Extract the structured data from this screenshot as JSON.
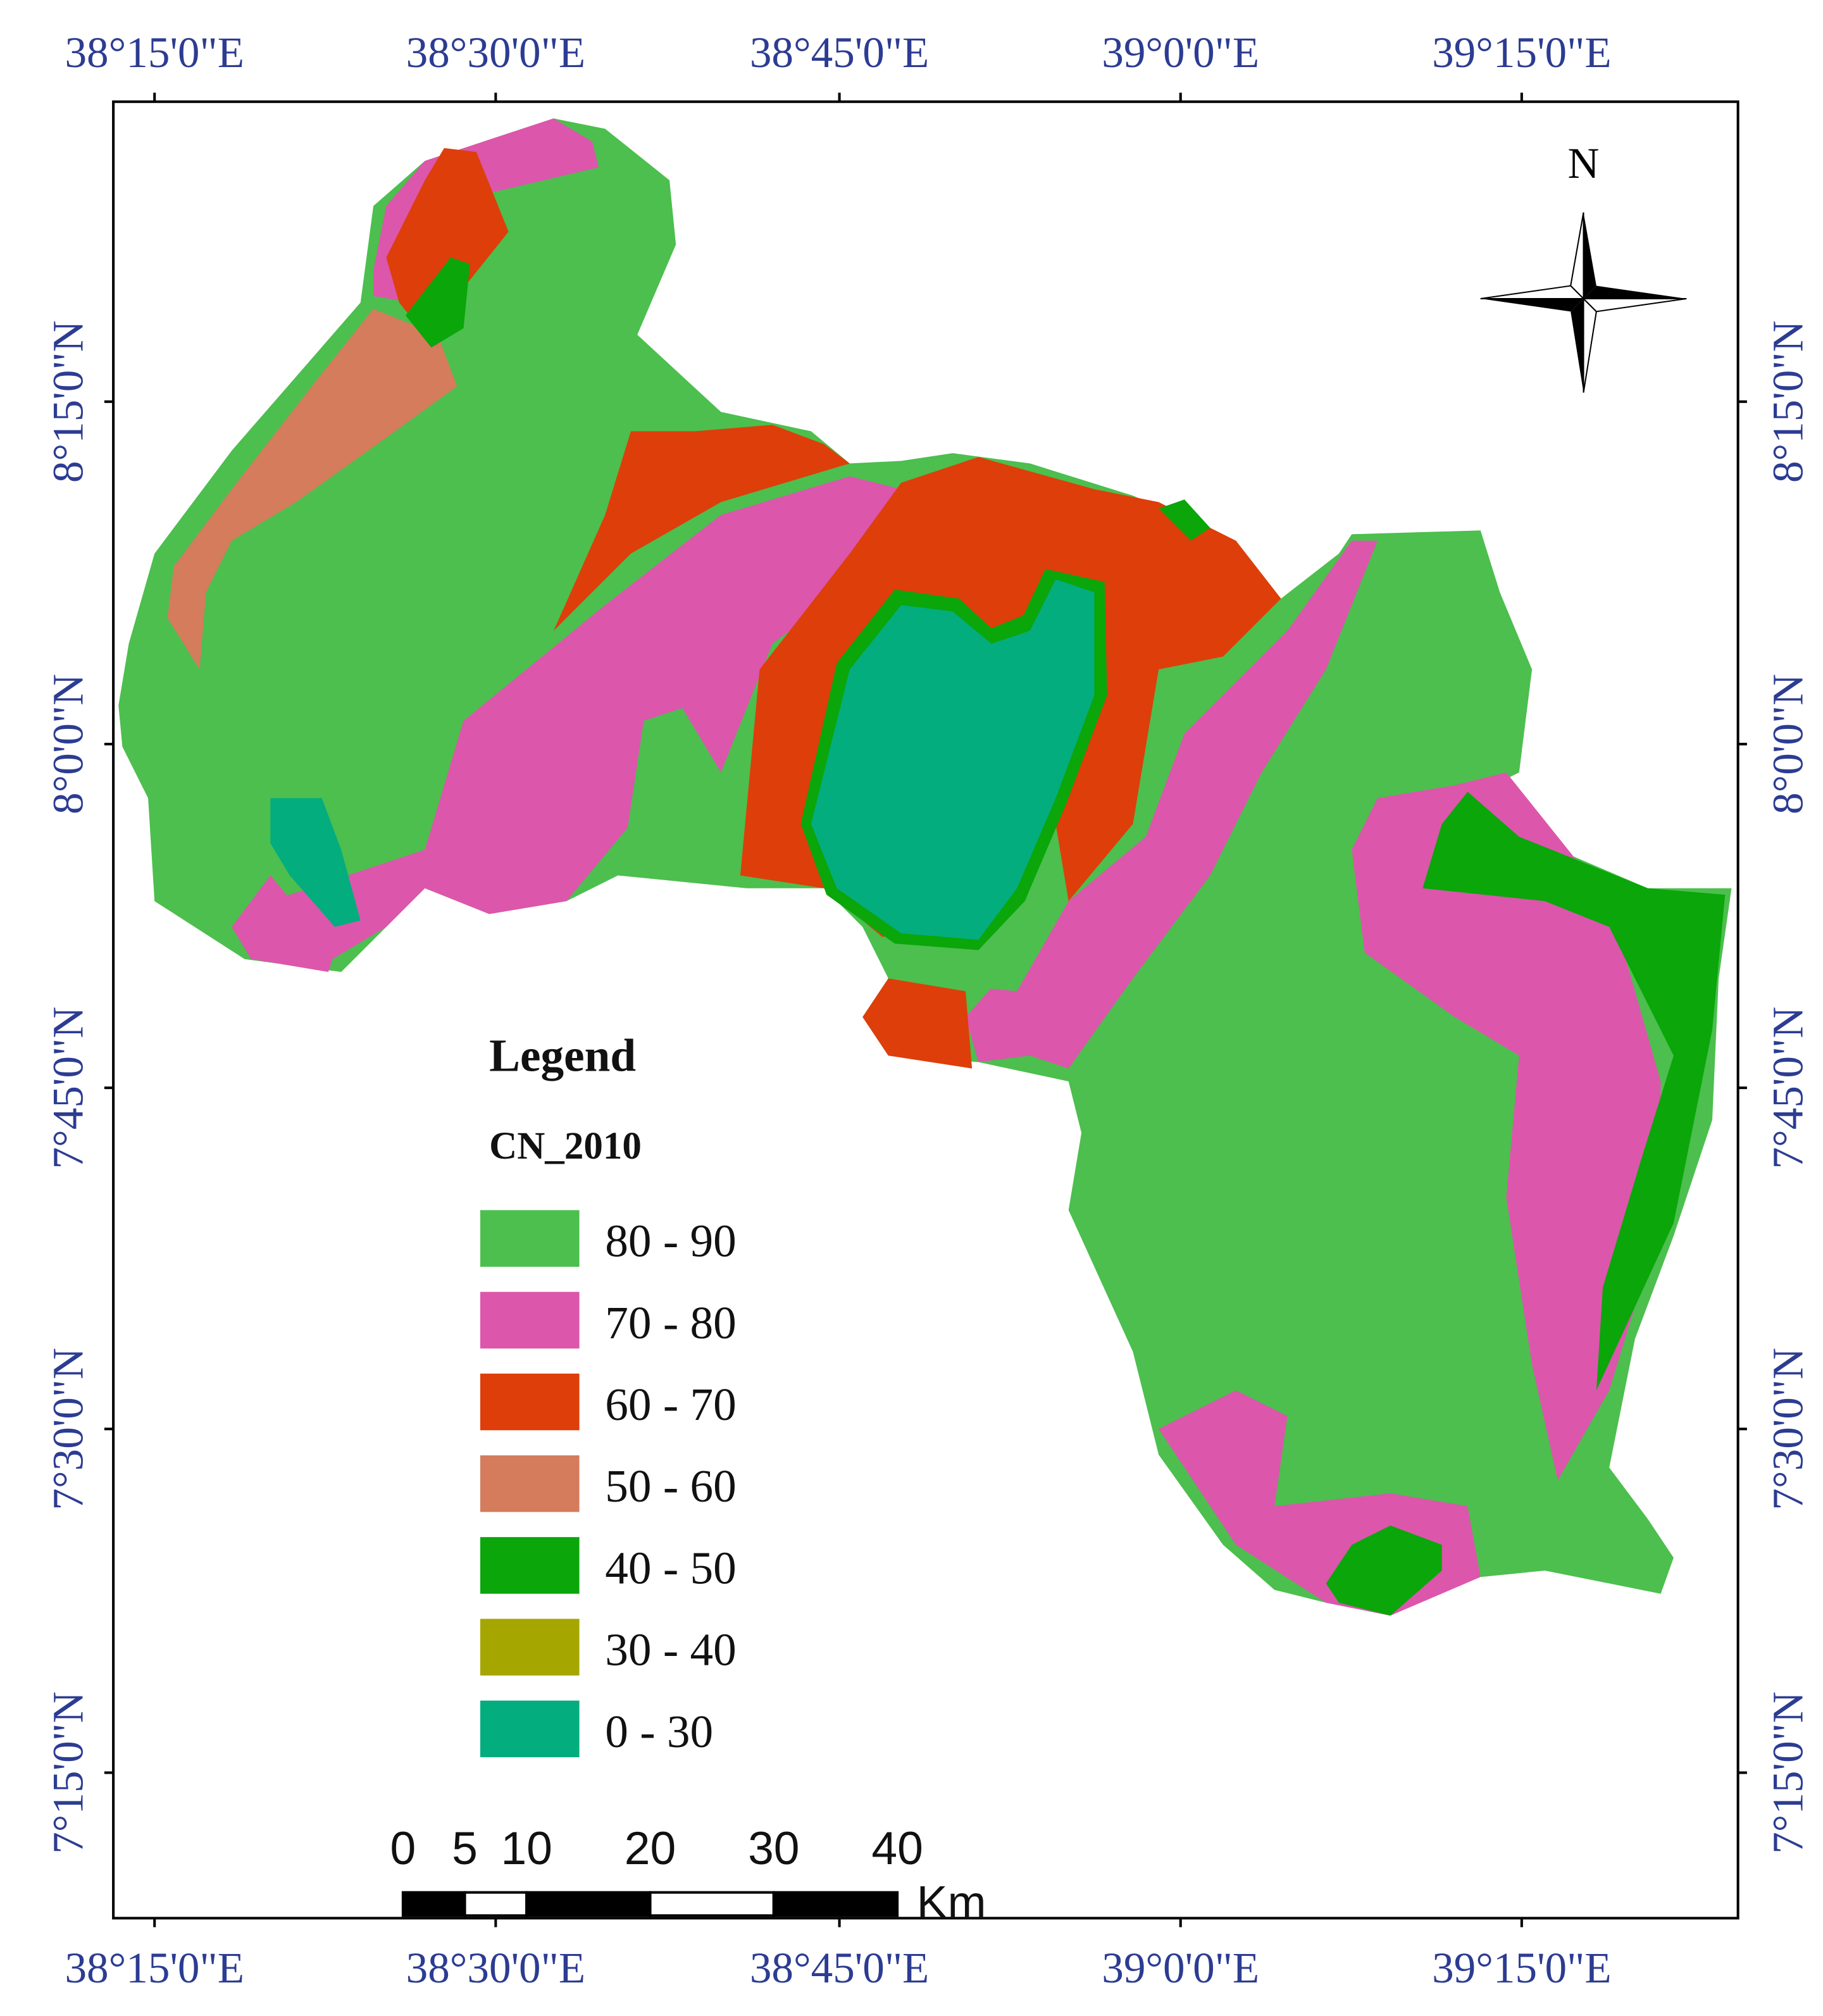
{
  "map": {
    "top_labels": [
      "38°15'0\"E",
      "38°30'0\"E",
      "38°45'0\"E",
      "39°0'0\"E",
      "39°15'0\"E"
    ],
    "bottom_labels": [
      "38°15'0\"E",
      "38°30'0\"E",
      "38°45'0\"E",
      "39°0'0\"E",
      "39°15'0\"E"
    ],
    "left_labels": [
      "8°15'0\"N",
      "8°0'0\"N",
      "7°45'0\"N",
      "7°30'0\"N",
      "7°15'0\"N"
    ],
    "right_labels": [
      "8°15'0\"N",
      "8°0'0\"N",
      "7°45'0\"N",
      "7°30'0\"N",
      "7°15'0\"N"
    ],
    "north": "N",
    "legend": {
      "title": "Legend",
      "subtitle": "CN_2010",
      "items": [
        {
          "label": "80 - 90",
          "color": "#4cbf4e"
        },
        {
          "label": "70 - 80",
          "color": "#dc56ac"
        },
        {
          "label": "60 - 70",
          "color": "#de3e0a"
        },
        {
          "label": "50 - 60",
          "color": "#d47c5c"
        },
        {
          "label": "40 - 50",
          "color": "#0aa60a"
        },
        {
          "label": "30 - 40",
          "color": "#a6a600"
        },
        {
          "label": " 0  - 30",
          "color": "#04ad7e"
        }
      ]
    },
    "scale": {
      "ticks": [
        0,
        5,
        10,
        20,
        30,
        40
      ],
      "unit": "Km"
    }
  }
}
